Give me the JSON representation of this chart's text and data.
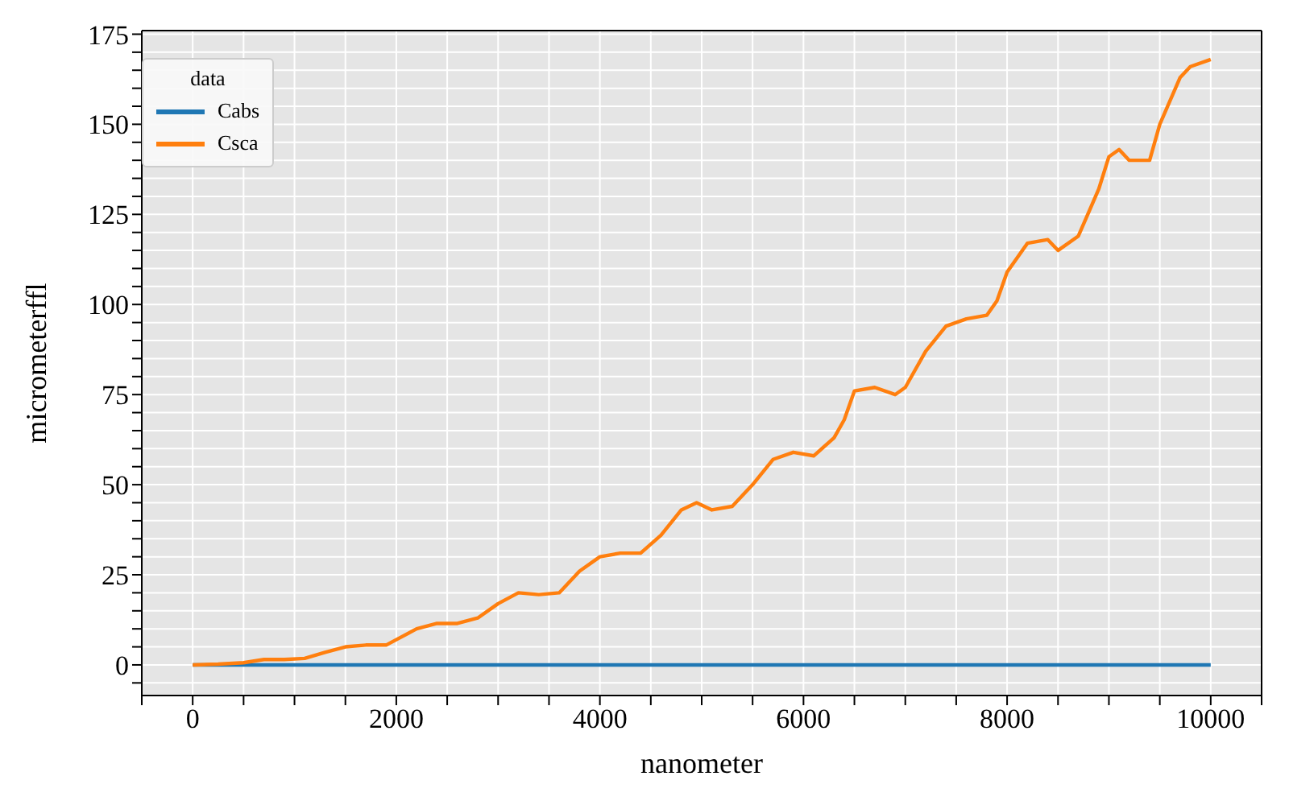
{
  "chart_data": {
    "type": "line",
    "xlabel": "nanometer",
    "ylabel": "micrometerffl",
    "legend_title": "data",
    "legend": "top left",
    "grid": true,
    "marker": "none",
    "line_style": "solid",
    "xlim": [
      -500,
      10500
    ],
    "ylim": [
      -8.5,
      176
    ],
    "xticks": [
      {
        "value": -500,
        "label": null
      },
      0,
      {
        "value": 500,
        "label": null
      },
      {
        "value": 1000,
        "label": null
      },
      {
        "value": 1500,
        "label": null
      },
      2000,
      {
        "value": 2500,
        "label": null
      },
      {
        "value": 3000,
        "label": null
      },
      {
        "value": 3500,
        "label": null
      },
      4000,
      {
        "value": 4500,
        "label": null
      },
      {
        "value": 5000,
        "label": null
      },
      {
        "value": 5500,
        "label": null
      },
      6000,
      {
        "value": 6500,
        "label": null
      },
      {
        "value": 7000,
        "label": null
      },
      {
        "value": 7500,
        "label": null
      },
      8000,
      {
        "value": 8500,
        "label": null
      },
      {
        "value": 9000,
        "label": null
      },
      {
        "value": 9500,
        "label": null
      },
      10000,
      {
        "value": 10500,
        "label": null
      }
    ],
    "yticks": [
      {
        "value": -5,
        "label": null
      },
      0,
      {
        "value": 5,
        "label": null
      },
      {
        "value": 10,
        "label": null
      },
      {
        "value": 15,
        "label": null
      },
      {
        "value": 20,
        "label": null
      },
      25,
      {
        "value": 30,
        "label": null
      },
      {
        "value": 35,
        "label": null
      },
      {
        "value": 40,
        "label": null
      },
      {
        "value": 45,
        "label": null
      },
      50,
      {
        "value": 55,
        "label": null
      },
      {
        "value": 60,
        "label": null
      },
      {
        "value": 65,
        "label": null
      },
      {
        "value": 70,
        "label": null
      },
      75,
      {
        "value": 80,
        "label": null
      },
      {
        "value": 85,
        "label": null
      },
      {
        "value": 90,
        "label": null
      },
      {
        "value": 95,
        "label": null
      },
      100,
      {
        "value": 105,
        "label": null
      },
      {
        "value": 110,
        "label": null
      },
      {
        "value": 115,
        "label": null
      },
      {
        "value": 120,
        "label": null
      },
      125,
      {
        "value": 130,
        "label": null
      },
      {
        "value": 135,
        "label": null
      },
      {
        "value": 140,
        "label": null
      },
      {
        "value": 145,
        "label": null
      },
      150,
      {
        "value": 155,
        "label": null
      },
      {
        "value": 160,
        "label": null
      },
      {
        "value": 165,
        "label": null
      },
      {
        "value": 170,
        "label": null
      },
      175
    ],
    "series": [
      {
        "name": "Cabs",
        "color": "#1f77b4",
        "x": [
          0,
          10000
        ],
        "values": [
          0,
          0
        ]
      },
      {
        "name": "Csca",
        "color": "#ff7f0e",
        "x": [
          0,
          250,
          500,
          700,
          900,
          1100,
          1300,
          1500,
          1700,
          1900,
          2000,
          2200,
          2400,
          2600,
          2800,
          3000,
          3200,
          3400,
          3600,
          3800,
          4000,
          4200,
          4400,
          4600,
          4800,
          4950,
          5100,
          5300,
          5500,
          5700,
          5900,
          6100,
          6300,
          6400,
          6500,
          6700,
          6900,
          7000,
          7200,
          7400,
          7600,
          7800,
          7900,
          8000,
          8200,
          8400,
          8500,
          8700,
          8900,
          9000,
          9100,
          9200,
          9400,
          9500,
          9700,
          9800,
          10000
        ],
        "values": [
          0,
          0.2,
          0.6,
          1.5,
          1.5,
          1.8,
          3.5,
          5,
          5.5,
          5.5,
          7,
          10,
          11.5,
          11.5,
          13,
          17,
          20,
          19.5,
          20,
          26,
          30,
          31,
          31,
          36,
          43,
          45,
          43,
          44,
          50,
          57,
          59,
          58,
          63,
          68,
          76,
          77,
          75,
          77,
          87,
          94,
          96,
          97,
          101,
          109,
          117,
          118,
          115,
          119,
          132,
          141,
          143,
          140,
          140,
          150,
          163,
          166,
          168
        ]
      }
    ]
  }
}
